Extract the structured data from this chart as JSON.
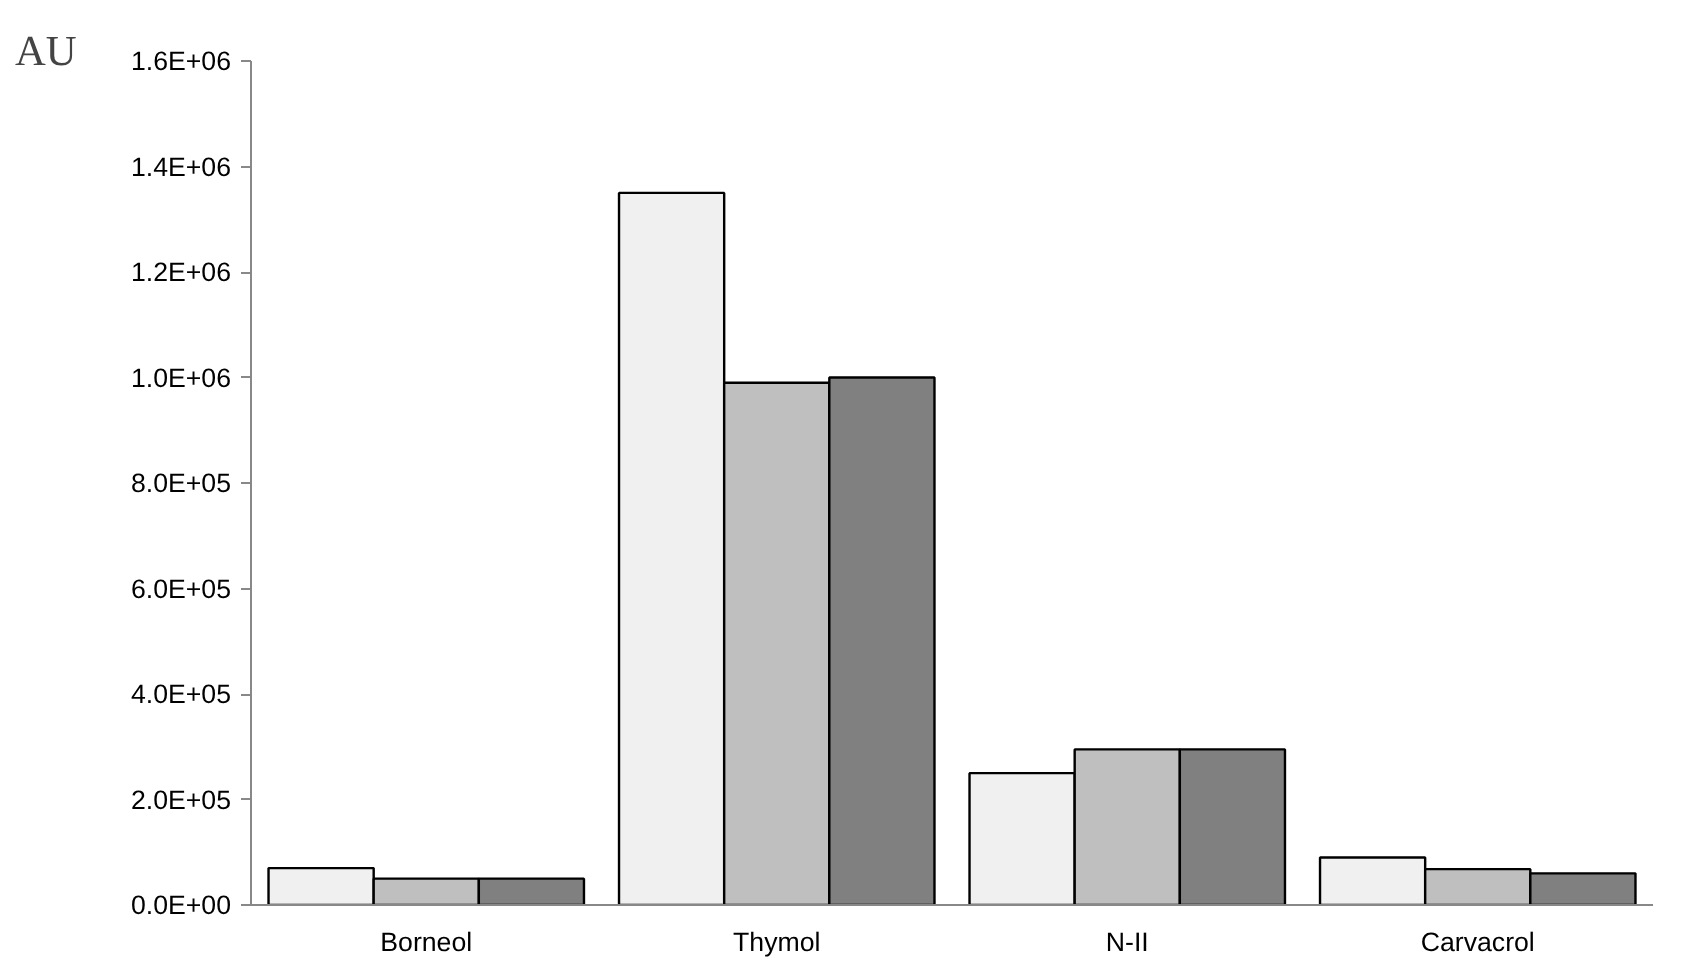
{
  "chart_data": {
    "type": "bar",
    "ylabel": "AU",
    "categories": [
      "Borneol",
      "Thymol",
      "N-II",
      "Carvacrol"
    ],
    "series": [
      {
        "color": "#f0f0f0",
        "values": [
          70000,
          1350000,
          250000,
          90000
        ]
      },
      {
        "color": "#bfbfbf",
        "values": [
          50000,
          990000,
          295000,
          68000
        ]
      },
      {
        "color": "#808080",
        "values": [
          50000,
          1000000,
          295000,
          60000
        ]
      }
    ],
    "ylim": [
      0,
      1600000
    ],
    "yticks": [
      {
        "value": 0,
        "label": "0.0E+00"
      },
      {
        "value": 200000,
        "label": "2.0E+05"
      },
      {
        "value": 400000,
        "label": "4.0E+05"
      },
      {
        "value": 600000,
        "label": "6.0E+05"
      },
      {
        "value": 800000,
        "label": "8.0E+05"
      },
      {
        "value": 1000000,
        "label": "1.0E+06"
      },
      {
        "value": 1200000,
        "label": "1.2E+06"
      },
      {
        "value": 1400000,
        "label": "1.4E+06"
      },
      {
        "value": 1600000,
        "label": "1.6E+06"
      }
    ],
    "grid": false
  }
}
